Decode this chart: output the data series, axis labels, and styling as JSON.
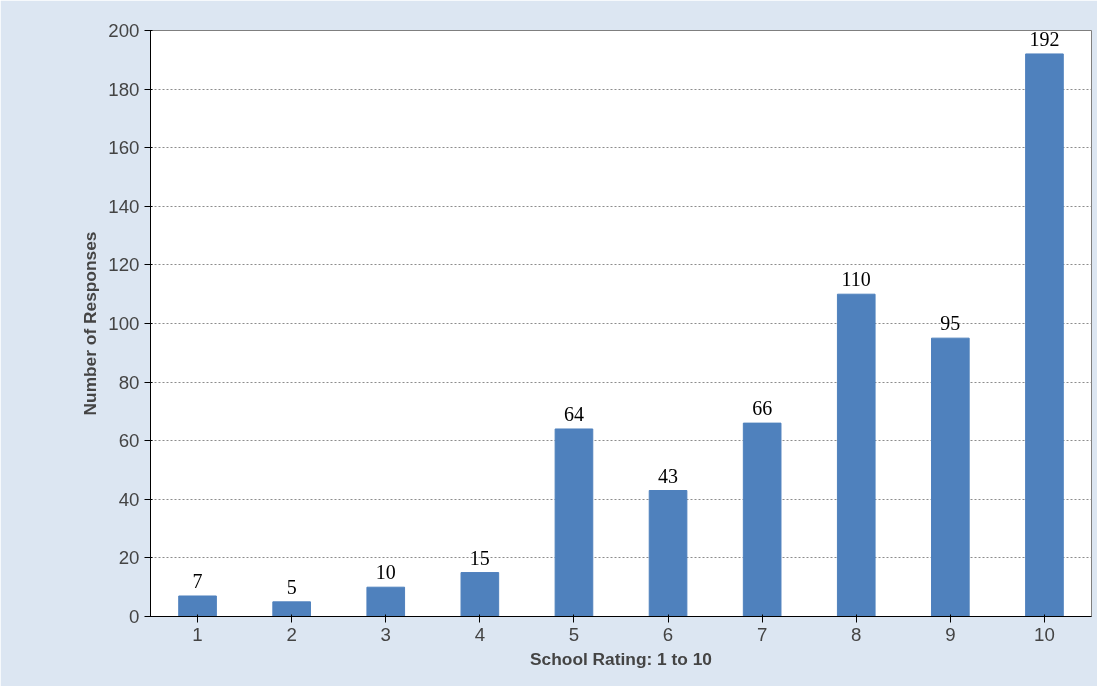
{
  "chart_data": {
    "type": "bar",
    "xlabel": "School Rating: 1 to 10",
    "ylabel": "Number of Responses",
    "categories": [
      "1",
      "2",
      "3",
      "4",
      "5",
      "6",
      "7",
      "8",
      "9",
      "10"
    ],
    "values": [
      7,
      5,
      10,
      15,
      64,
      43,
      66,
      110,
      95,
      192
    ],
    "color": "#4f81bd",
    "ylim": [
      0,
      200
    ],
    "yticks": [
      0,
      20,
      40,
      60,
      80,
      100,
      120,
      140,
      160,
      180,
      200
    ],
    "grid": "y",
    "data_labels": true
  }
}
